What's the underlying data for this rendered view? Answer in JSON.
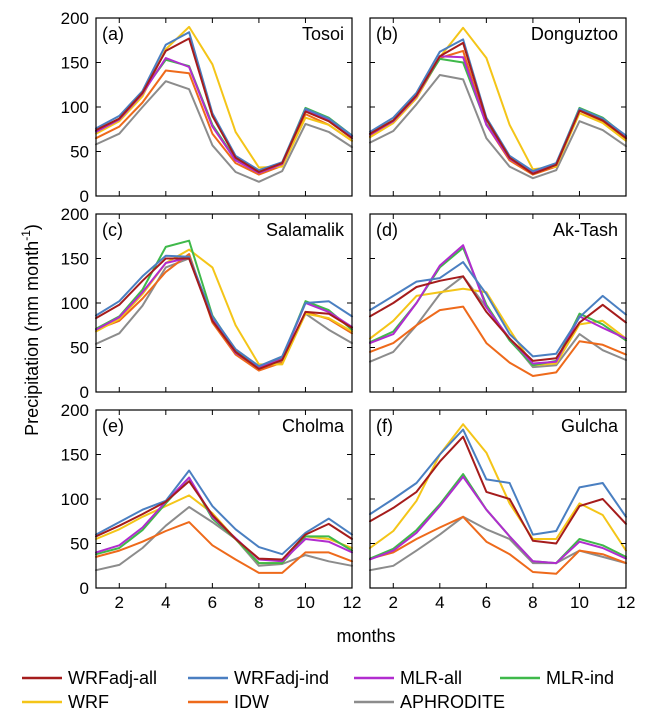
{
  "axes": {
    "xlabel": "months",
    "ylabel": "Precipitation (mm month",
    "ylabel_sup": "-1",
    "ylabel_tail": ")",
    "x_ticks": [
      "2",
      "4",
      "6",
      "8",
      "10",
      "12"
    ],
    "y_ticks": [
      "0",
      "50",
      "100",
      "150",
      "200"
    ]
  },
  "colors": {
    "WRFadj-all": "#a51c1c",
    "WRFadj-ind": "#4a7fc1",
    "MLR-all": "#b12ccf",
    "MLR-ind": "#3fb94a",
    "WRF": "#f4c518",
    "IDW": "#ee6a1b",
    "APHRODITE": "#8c8c8c"
  },
  "chart_data": {
    "type": "line",
    "x": [
      1,
      2,
      3,
      4,
      5,
      6,
      7,
      8,
      9,
      10,
      11,
      12
    ],
    "xlim": [
      1,
      12
    ],
    "ylim": [
      0,
      200
    ],
    "xlabel": "months",
    "ylabel": "Precipitation (mm month-1)",
    "legend": [
      "WRFadj-all",
      "WRFadj-ind",
      "MLR-all",
      "MLR-ind",
      "WRF",
      "IDW",
      "APHRODITE"
    ],
    "legend_position": "bottom",
    "panels": [
      {
        "label": "(a)",
        "name": "Tosoi",
        "series": [
          {
            "name": "WRFadj-all",
            "values": [
              74,
              87,
              116,
              163,
              177,
              90,
              43,
              27,
              37,
              95,
              84,
              65
            ]
          },
          {
            "name": "WRFadj-ind",
            "values": [
              76,
              90,
              118,
              170,
              184,
              93,
              45,
              29,
              38,
              98,
              87,
              68
            ]
          },
          {
            "name": "MLR-all",
            "values": [
              72,
              86,
              115,
              155,
              145,
              78,
              40,
              26,
              36,
              96,
              85,
              67
            ]
          },
          {
            "name": "MLR-ind",
            "values": [
              73,
              87,
              117,
              153,
              146,
              80,
              41,
              27,
              37,
              99,
              88,
              68
            ]
          },
          {
            "name": "WRF",
            "values": [
              70,
              84,
              112,
              165,
              190,
              148,
              72,
              32,
              33,
              88,
              80,
              62
            ]
          },
          {
            "name": "IDW",
            "values": [
              65,
              78,
              105,
              141,
              138,
              70,
              37,
              24,
              34,
              92,
              80,
              62
            ]
          },
          {
            "name": "APHRODITE",
            "values": [
              58,
              70,
              100,
              129,
              120,
              57,
              27,
              16,
              28,
              81,
              72,
              55
            ]
          }
        ]
      },
      {
        "label": "(b)",
        "name": "Donguztoo",
        "series": [
          {
            "name": "WRFadj-all",
            "values": [
              70,
              85,
              113,
              157,
              172,
              86,
              43,
              25,
              35,
              96,
              85,
              65
            ]
          },
          {
            "name": "WRFadj-ind",
            "values": [
              72,
              88,
              116,
              162,
              176,
              88,
              45,
              28,
              37,
              98,
              87,
              68
            ]
          },
          {
            "name": "MLR-all",
            "values": [
              69,
              84,
              112,
              157,
              156,
              80,
              42,
              26,
              35,
              97,
              86,
              66
            ]
          },
          {
            "name": "MLR-ind",
            "values": [
              70,
              85,
              113,
              154,
              150,
              81,
              43,
              27,
              36,
              99,
              88,
              67
            ]
          },
          {
            "name": "WRF",
            "values": [
              66,
              82,
              110,
              156,
              189,
              155,
              80,
              30,
              33,
              93,
              82,
              62
            ]
          },
          {
            "name": "IDW",
            "values": [
              67,
              82,
              110,
              155,
              163,
              80,
              40,
              24,
              33,
              96,
              84,
              64
            ]
          },
          {
            "name": "APHRODITE",
            "values": [
              60,
              73,
              103,
              136,
              131,
              65,
              33,
              20,
              29,
              84,
              74,
              56
            ]
          }
        ]
      },
      {
        "label": "(c)",
        "name": "Salamalik",
        "series": [
          {
            "name": "WRFadj-all",
            "values": [
              83,
              98,
              125,
              150,
              150,
              80,
              45,
              26,
              36,
              90,
              88,
              72
            ]
          },
          {
            "name": "WRFadj-ind",
            "values": [
              86,
              102,
              130,
              153,
              152,
              85,
              48,
              29,
              40,
              100,
              102,
              85
            ]
          },
          {
            "name": "MLR-all",
            "values": [
              70,
              84,
              112,
              145,
              151,
              82,
              44,
              27,
              37,
              100,
              90,
              73
            ]
          },
          {
            "name": "MLR-ind",
            "values": [
              71,
              85,
              115,
              163,
              170,
              86,
              46,
              28,
              38,
              102,
              92,
              70
            ]
          },
          {
            "name": "WRF",
            "values": [
              68,
              82,
              110,
              145,
              160,
              140,
              75,
              31,
              31,
              88,
              83,
              68
            ]
          },
          {
            "name": "IDW",
            "values": [
              70,
              80,
              105,
              135,
              155,
              78,
              42,
              24,
              33,
              90,
              82,
              66
            ]
          },
          {
            "name": "APHRODITE",
            "values": [
              54,
              66,
              97,
              140,
              150,
              84,
              48,
              29,
              34,
              88,
              70,
              55
            ]
          }
        ]
      },
      {
        "label": "(d)",
        "name": "Ak-Tash",
        "series": [
          {
            "name": "WRFadj-all",
            "values": [
              85,
              100,
              118,
              125,
              130,
              90,
              60,
              35,
              38,
              78,
              98,
              78
            ]
          },
          {
            "name": "WRFadj-ind",
            "values": [
              92,
              108,
              124,
              128,
              146,
              110,
              65,
              40,
              43,
              84,
              108,
              87
            ]
          },
          {
            "name": "MLR-all",
            "values": [
              55,
              65,
              100,
              142,
              165,
              95,
              60,
              32,
              34,
              85,
              72,
              60
            ]
          },
          {
            "name": "MLR-ind",
            "values": [
              56,
              68,
              100,
              140,
              162,
              98,
              58,
              30,
              35,
              88,
              76,
              58
            ]
          },
          {
            "name": "WRF",
            "values": [
              60,
              80,
              108,
              112,
              116,
              112,
              70,
              30,
              32,
              76,
              80,
              60
            ]
          },
          {
            "name": "IDW",
            "values": [
              45,
              55,
              75,
              92,
              96,
              55,
              33,
              18,
              22,
              57,
              53,
              42
            ]
          },
          {
            "name": "APHRODITE",
            "values": [
              34,
              45,
              75,
              110,
              130,
              95,
              60,
              28,
              30,
              65,
              47,
              36
            ]
          }
        ]
      },
      {
        "label": "(e)",
        "name": "Cholma",
        "series": [
          {
            "name": "WRFadj-all",
            "values": [
              58,
              70,
              83,
              97,
              120,
              82,
              55,
              33,
              32,
              60,
              72,
              55
            ]
          },
          {
            "name": "WRFadj-ind",
            "values": [
              60,
              74,
              88,
              98,
              132,
              92,
              66,
              46,
              38,
              62,
              78,
              60
            ]
          },
          {
            "name": "MLR-all",
            "values": [
              40,
              48,
              68,
              97,
              124,
              80,
              56,
              32,
              30,
              55,
              52,
              40
            ]
          },
          {
            "name": "MLR-ind",
            "values": [
              38,
              45,
              65,
              95,
              124,
              78,
              55,
              28,
              28,
              58,
              58,
              42
            ]
          },
          {
            "name": "WRF",
            "values": [
              55,
              66,
              80,
              92,
              104,
              84,
              55,
              28,
              28,
              58,
              55,
              45
            ]
          },
          {
            "name": "IDW",
            "values": [
              35,
              42,
              52,
              64,
              74,
              48,
              32,
              17,
              17,
              40,
              40,
              30
            ]
          },
          {
            "name": "APHRODITE",
            "values": [
              20,
              26,
              45,
              70,
              91,
              74,
              55,
              25,
              27,
              37,
              30,
              25
            ]
          }
        ]
      },
      {
        "label": "(f)",
        "name": "Gulcha",
        "series": [
          {
            "name": "WRFadj-all",
            "values": [
              75,
              90,
              108,
              142,
              170,
              108,
              100,
              53,
              50,
              92,
              100,
              72
            ]
          },
          {
            "name": "WRFadj-ind",
            "values": [
              83,
              100,
              118,
              150,
              178,
              122,
              118,
              60,
              64,
              113,
              118,
              80
            ]
          },
          {
            "name": "MLR-all",
            "values": [
              32,
              42,
              62,
              92,
              125,
              88,
              58,
              30,
              28,
              52,
              45,
              33
            ]
          },
          {
            "name": "MLR-ind",
            "values": [
              33,
              44,
              65,
              94,
              128,
              88,
              58,
              30,
              28,
              55,
              48,
              35
            ]
          },
          {
            "name": "WRF",
            "values": [
              45,
              64,
              98,
              150,
              184,
              152,
              95,
              55,
              55,
              95,
              82,
              42
            ]
          },
          {
            "name": "IDW",
            "values": [
              33,
              40,
              55,
              68,
              80,
              52,
              38,
              18,
              16,
              42,
              38,
              28
            ]
          },
          {
            "name": "APHRODITE",
            "values": [
              20,
              25,
              42,
              60,
              80,
              66,
              55,
              28,
              28,
              42,
              35,
              28
            ]
          }
        ]
      }
    ]
  }
}
